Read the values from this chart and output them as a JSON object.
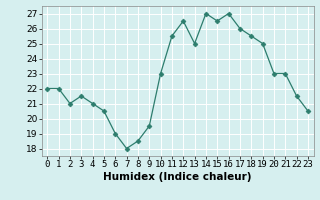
{
  "x": [
    0,
    1,
    2,
    3,
    4,
    5,
    6,
    7,
    8,
    9,
    10,
    11,
    12,
    13,
    14,
    15,
    16,
    17,
    18,
    19,
    20,
    21,
    22,
    23
  ],
  "y": [
    22,
    22,
    21,
    21.5,
    21,
    20.5,
    19,
    18,
    18.5,
    19.5,
    23,
    25.5,
    26.5,
    25,
    27,
    26.5,
    27,
    26,
    25.5,
    25,
    23,
    23,
    21.5,
    20.5
  ],
  "xlabel": "Humidex (Indice chaleur)",
  "xlim": [
    -0.5,
    23.5
  ],
  "ylim": [
    17.5,
    27.5
  ],
  "yticks": [
    18,
    19,
    20,
    21,
    22,
    23,
    24,
    25,
    26,
    27
  ],
  "xticks": [
    0,
    1,
    2,
    3,
    4,
    5,
    6,
    7,
    8,
    9,
    10,
    11,
    12,
    13,
    14,
    15,
    16,
    17,
    18,
    19,
    20,
    21,
    22,
    23
  ],
  "line_color": "#2d7d6d",
  "marker": "D",
  "marker_size": 2.5,
  "bg_color": "#d6efef",
  "grid_color": "#ffffff",
  "xlabel_fontsize": 7.5,
  "tick_fontsize": 6.5
}
